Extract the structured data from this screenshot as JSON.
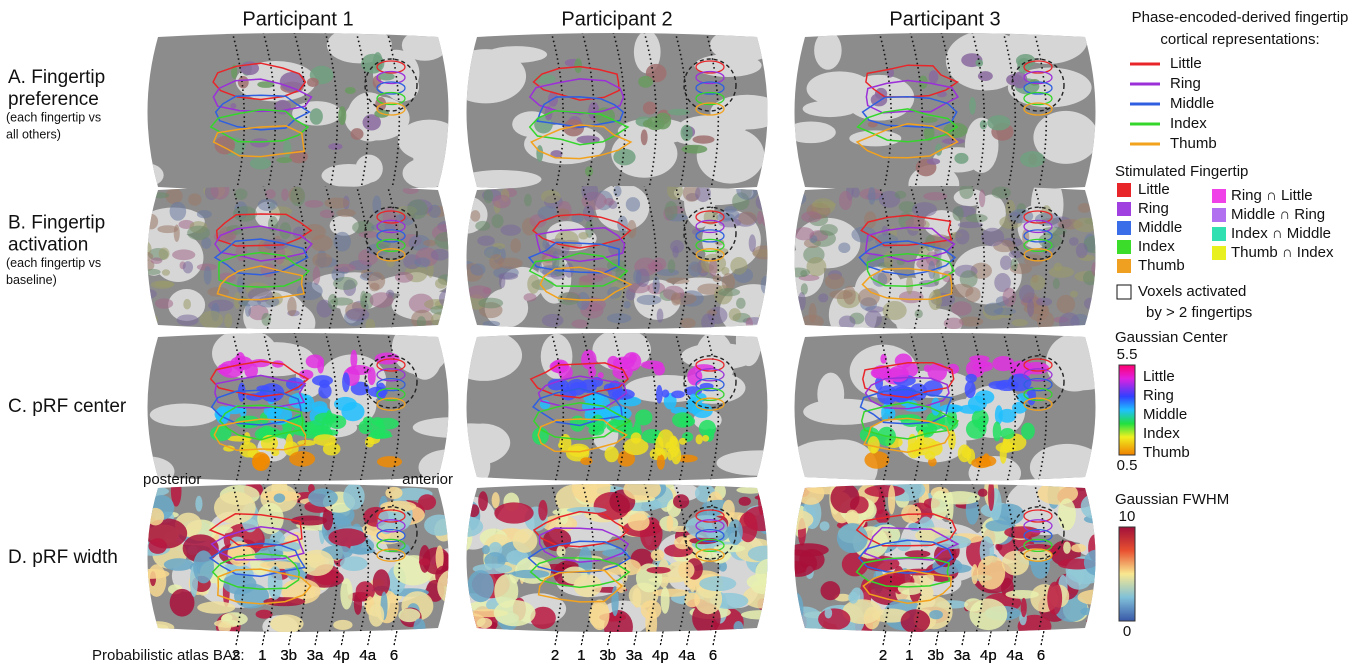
{
  "columns": [
    "Participant 1",
    "Participant 2",
    "Participant 3"
  ],
  "rows": [
    {
      "label": [
        "A. Fingertip",
        "preference"
      ],
      "sublabel": [
        "(each fingertip vs",
        "all others)"
      ]
    },
    {
      "label": [
        "B. Fingertip",
        "activation"
      ],
      "sublabel": [
        "(each fingertip vs",
        "baseline)"
      ]
    },
    {
      "label": [
        "C. pRF center"
      ],
      "sublabel": []
    },
    {
      "label": [
        "D. pRF width"
      ],
      "sublabel": []
    }
  ],
  "orientation": {
    "posterior": "posterior",
    "anterior": "anterior"
  },
  "atlas": {
    "label": "Probabilistic atlas BAs:",
    "areas": [
      "2",
      "1",
      "3b",
      "3a",
      "4p",
      "4a",
      "6"
    ]
  },
  "legend_contours": {
    "title": [
      "Phase-encoded-derived fingertip",
      "cortical representations:"
    ],
    "items": [
      {
        "label": "Little",
        "color": "#e8262a"
      },
      {
        "label": "Ring",
        "color": "#9b30d9"
      },
      {
        "label": "Middle",
        "color": "#2f5fe0"
      },
      {
        "label": "Index",
        "color": "#35d62c"
      },
      {
        "label": "Thumb",
        "color": "#f2a21d"
      }
    ]
  },
  "legend_stimulated": {
    "title": "Stimulated Fingertip",
    "items": [
      {
        "label": "Little",
        "color": "#e8262a"
      },
      {
        "label": "Ring",
        "color": "#a040e0"
      },
      {
        "label": "Middle",
        "color": "#3a6ee8"
      },
      {
        "label": "Index",
        "color": "#3bdc2a"
      },
      {
        "label": "Thumb",
        "color": "#f0a020"
      }
    ],
    "overlaps": [
      {
        "label": "Ring ∩ Little",
        "color": "#f040e8"
      },
      {
        "label": "Middle ∩ Ring",
        "color": "#b070f0"
      },
      {
        "label": "Index ∩ Middle",
        "color": "#30e0b0"
      },
      {
        "label": "Thumb ∩ Index",
        "color": "#e8f020"
      }
    ],
    "note": [
      "Voxels activated",
      "by > 2 fingertips"
    ]
  },
  "legend_center": {
    "title": "Gaussian Center",
    "max": "5.5",
    "min": "0.5",
    "labels": [
      "Little",
      "Ring",
      "Middle",
      "Index",
      "Thumb"
    ]
  },
  "legend_fwhm": {
    "title": "Gaussian FWHM",
    "max": "10",
    "min": "0"
  }
}
